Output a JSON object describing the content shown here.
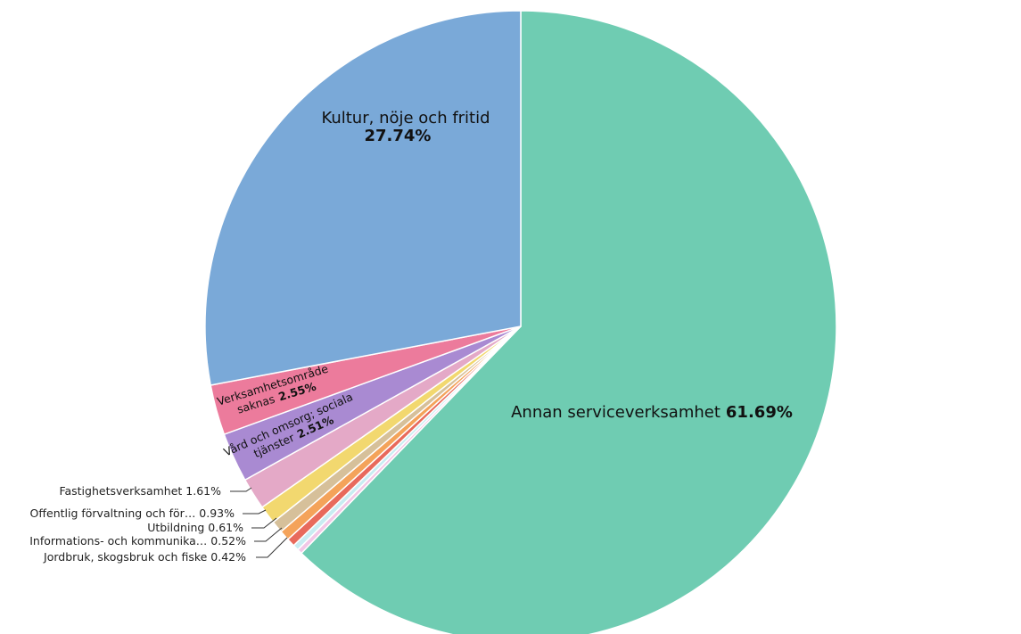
{
  "chart_data": {
    "type": "pie",
    "title": "",
    "start": "top",
    "direction": "clockwise",
    "slices": [
      {
        "label": "Annan serviceverksamhet",
        "pct_text": "61.69%",
        "value": 61.69,
        "color": "#6fccb2"
      },
      {
        "label": "",
        "pct_text": "",
        "value": 0.25,
        "color": "#f2c7e6"
      },
      {
        "label": "",
        "pct_text": "",
        "value": 0.3,
        "color": "#c9ecf2"
      },
      {
        "label": "Jordbruk, skogsbruk och fiske",
        "pct_text": "0.42%",
        "value": 0.42,
        "color": "#e86a5c"
      },
      {
        "label": "Informations- och kommunika…",
        "pct_text": "0.52%",
        "value": 0.52,
        "color": "#f4a35a"
      },
      {
        "label": "Utbildning",
        "pct_text": "0.61%",
        "value": 0.61,
        "color": "#d6c09a"
      },
      {
        "label": "Offentlig förvaltning och för…",
        "pct_text": "0.93%",
        "value": 0.93,
        "color": "#f2d86f"
      },
      {
        "label": "Fastighetsverksamhet",
        "pct_text": "1.61%",
        "value": 1.61,
        "color": "#e4a9c7"
      },
      {
        "label": "Vård och omsorg; sociala tjänster",
        "pct_text": "2.51%",
        "value": 2.51,
        "color": "#a98ad2"
      },
      {
        "label": "Verksamhetsområde saknas",
        "pct_text": "2.55%",
        "value": 2.55,
        "color": "#ec7b9c"
      },
      {
        "label": "Kultur, nöje och fritid",
        "pct_text": "27.74%",
        "value": 27.74,
        "color": "#7aa9d8"
      }
    ]
  },
  "labels": {
    "annan_name": "Annan serviceverksamhet",
    "annan_pct": "61.69%",
    "kultur_name": "Kultur, nöje och fritid",
    "kultur_pct": "27.74%",
    "verksamhet_line1": "Verksamhetsområde",
    "verksamhet_line2": "saknas",
    "verksamhet_pct": "2.55%",
    "vard_line1": "Vård och omsorg; sociala",
    "vard_line2": "tjänster",
    "vard_pct": "2.51%",
    "fastighet": "Fastighetsverksamhet  1.61%",
    "offentlig": "Offentlig förvaltning och för…  0.93%",
    "utbildning": "Utbildning  0.61%",
    "informations": "Informations- och kommunika…  0.52%",
    "jordbruk": "Jordbruk, skogsbruk och fiske  0.42%"
  }
}
